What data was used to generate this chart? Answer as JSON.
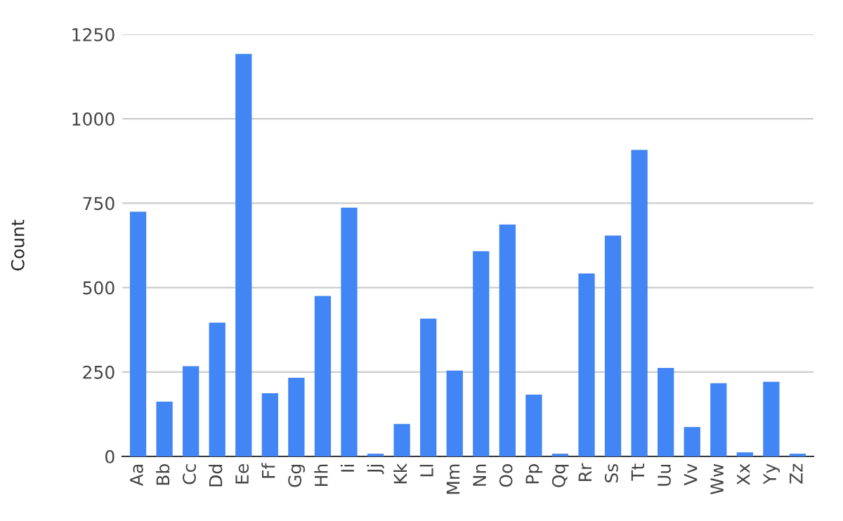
{
  "chart_data": {
    "type": "bar",
    "ylabel": "Count",
    "categories": [
      "Aa",
      "Bb",
      "Cc",
      "Dd",
      "Ee",
      "Ff",
      "Gg",
      "Hh",
      "Ii",
      "Jj",
      "Kk",
      "Ll",
      "Mm",
      "Nn",
      "Oo",
      "Pp",
      "Qq",
      "Rr",
      "Ss",
      "Tt",
      "Uu",
      "Vv",
      "Ww",
      "Xx",
      "Yy",
      "Zz"
    ],
    "values": [
      725,
      162,
      267,
      396,
      1192,
      187,
      233,
      475,
      737,
      8,
      96,
      408,
      254,
      608,
      687,
      183,
      8,
      542,
      654,
      908,
      262,
      87,
      217,
      12,
      221,
      8
    ],
    "color": "#4285f4",
    "ylim": [
      0,
      1250
    ],
    "yticks": [
      0,
      250,
      500,
      750,
      1000,
      1250
    ],
    "grid": "y"
  }
}
